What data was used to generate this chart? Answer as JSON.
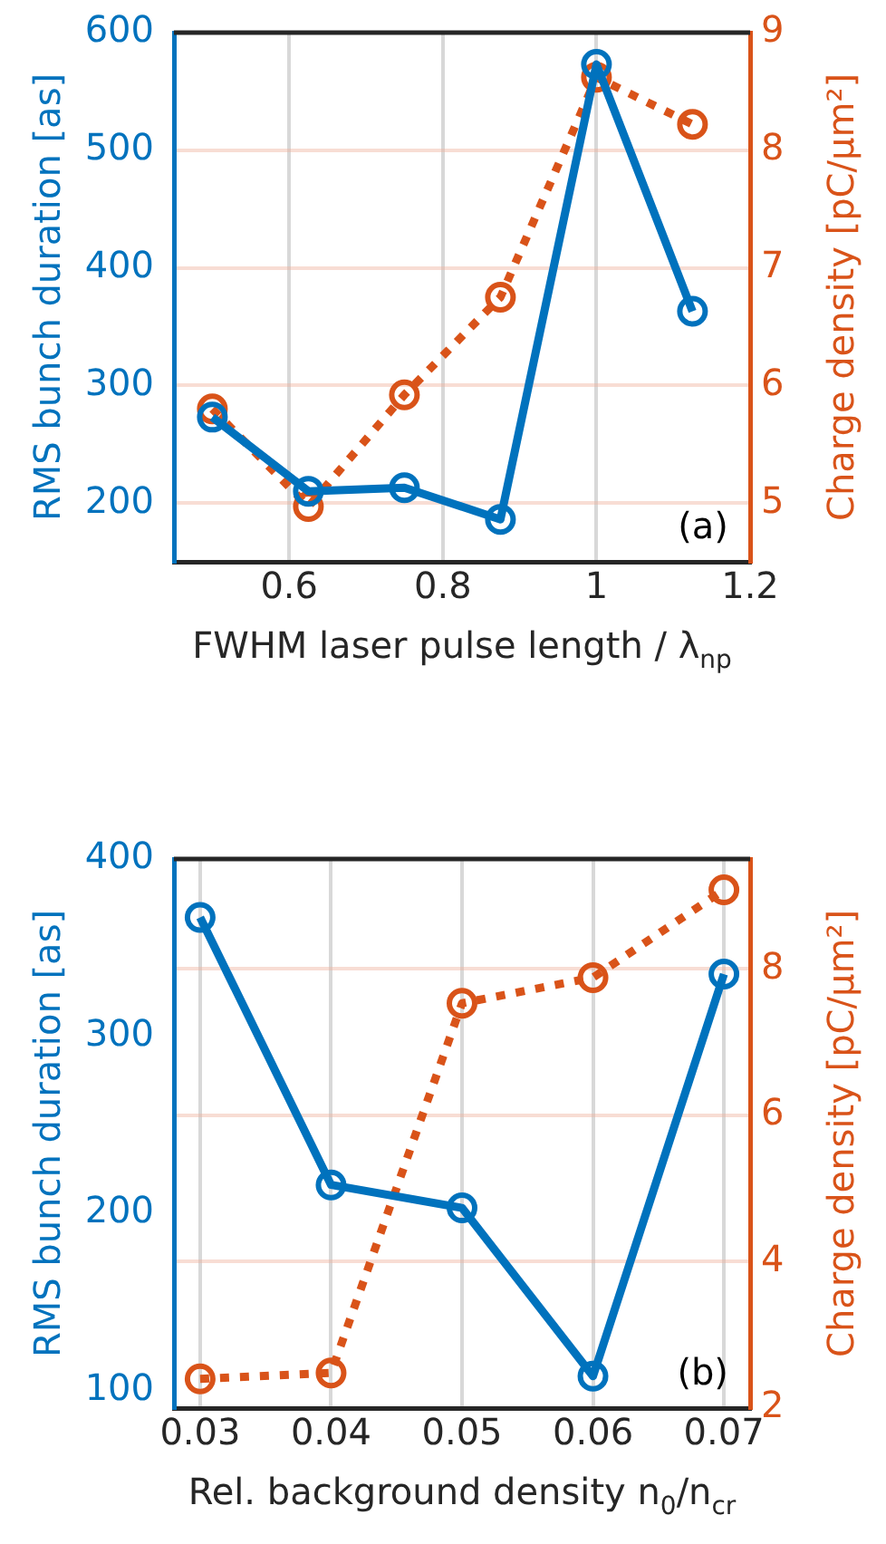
{
  "chart_data": [
    {
      "type": "line",
      "xlabel": "FWHM laser pulse length / λ$_{np}$",
      "ylabel": "RMS bunch duration [as]",
      "y2label": "Charge density [pC/μm²]",
      "x": [
        0.5,
        0.625,
        0.75,
        0.875,
        1.0,
        1.125
      ],
      "series": [
        {
          "color": "#0072bd",
          "values": [
            273,
            210,
            213,
            186,
            573,
            363
          ],
          "axis": "y",
          "line_style": "solid",
          "marker": "circle"
        },
        {
          "color": "#d95319",
          "values": [
            5.8,
            4.97,
            5.92,
            6.75,
            8.62,
            8.22
          ],
          "axis": "y2",
          "line_style": "dotted",
          "marker": "circle"
        }
      ],
      "xlim": [
        0.45,
        1.2
      ],
      "xticks": [
        0.6,
        0.8,
        1,
        1.2
      ],
      "ylim": [
        150,
        600
      ],
      "yticks": [
        200,
        300,
        400,
        500,
        600
      ],
      "y2lim": [
        4.5,
        9
      ],
      "y2ticks": [
        5,
        6,
        7,
        8,
        9
      ],
      "grid": true,
      "annotations": [
        "(a)"
      ]
    },
    {
      "type": "line",
      "xlabel": "Rel. background density n$_{0}$/n$_{cr}$",
      "ylabel": "RMS bunch duration [as]",
      "y2label": "Charge density [pC/μm²]",
      "x": [
        0.03,
        0.04,
        0.05,
        0.06,
        0.07
      ],
      "series": [
        {
          "color": "#0072bd",
          "values": [
            367,
            216,
            203,
            108,
            335
          ],
          "axis": "y",
          "line_style": "solid",
          "marker": "circle"
        },
        {
          "color": "#d95319",
          "values": [
            2.4,
            2.48,
            7.53,
            7.88,
            9.08
          ],
          "axis": "y2",
          "line_style": "dotted",
          "marker": "circle"
        }
      ],
      "xlim": [
        0.028,
        0.072
      ],
      "xticks": [
        0.03,
        0.04,
        0.05,
        0.06,
        0.07
      ],
      "ylim": [
        90,
        400
      ],
      "yticks": [
        100,
        200,
        300,
        400
      ],
      "y2lim": [
        2,
        9.5
      ],
      "y2ticks": [
        2,
        4,
        6,
        8
      ],
      "grid": true,
      "annotations": [
        "(b)"
      ]
    }
  ]
}
